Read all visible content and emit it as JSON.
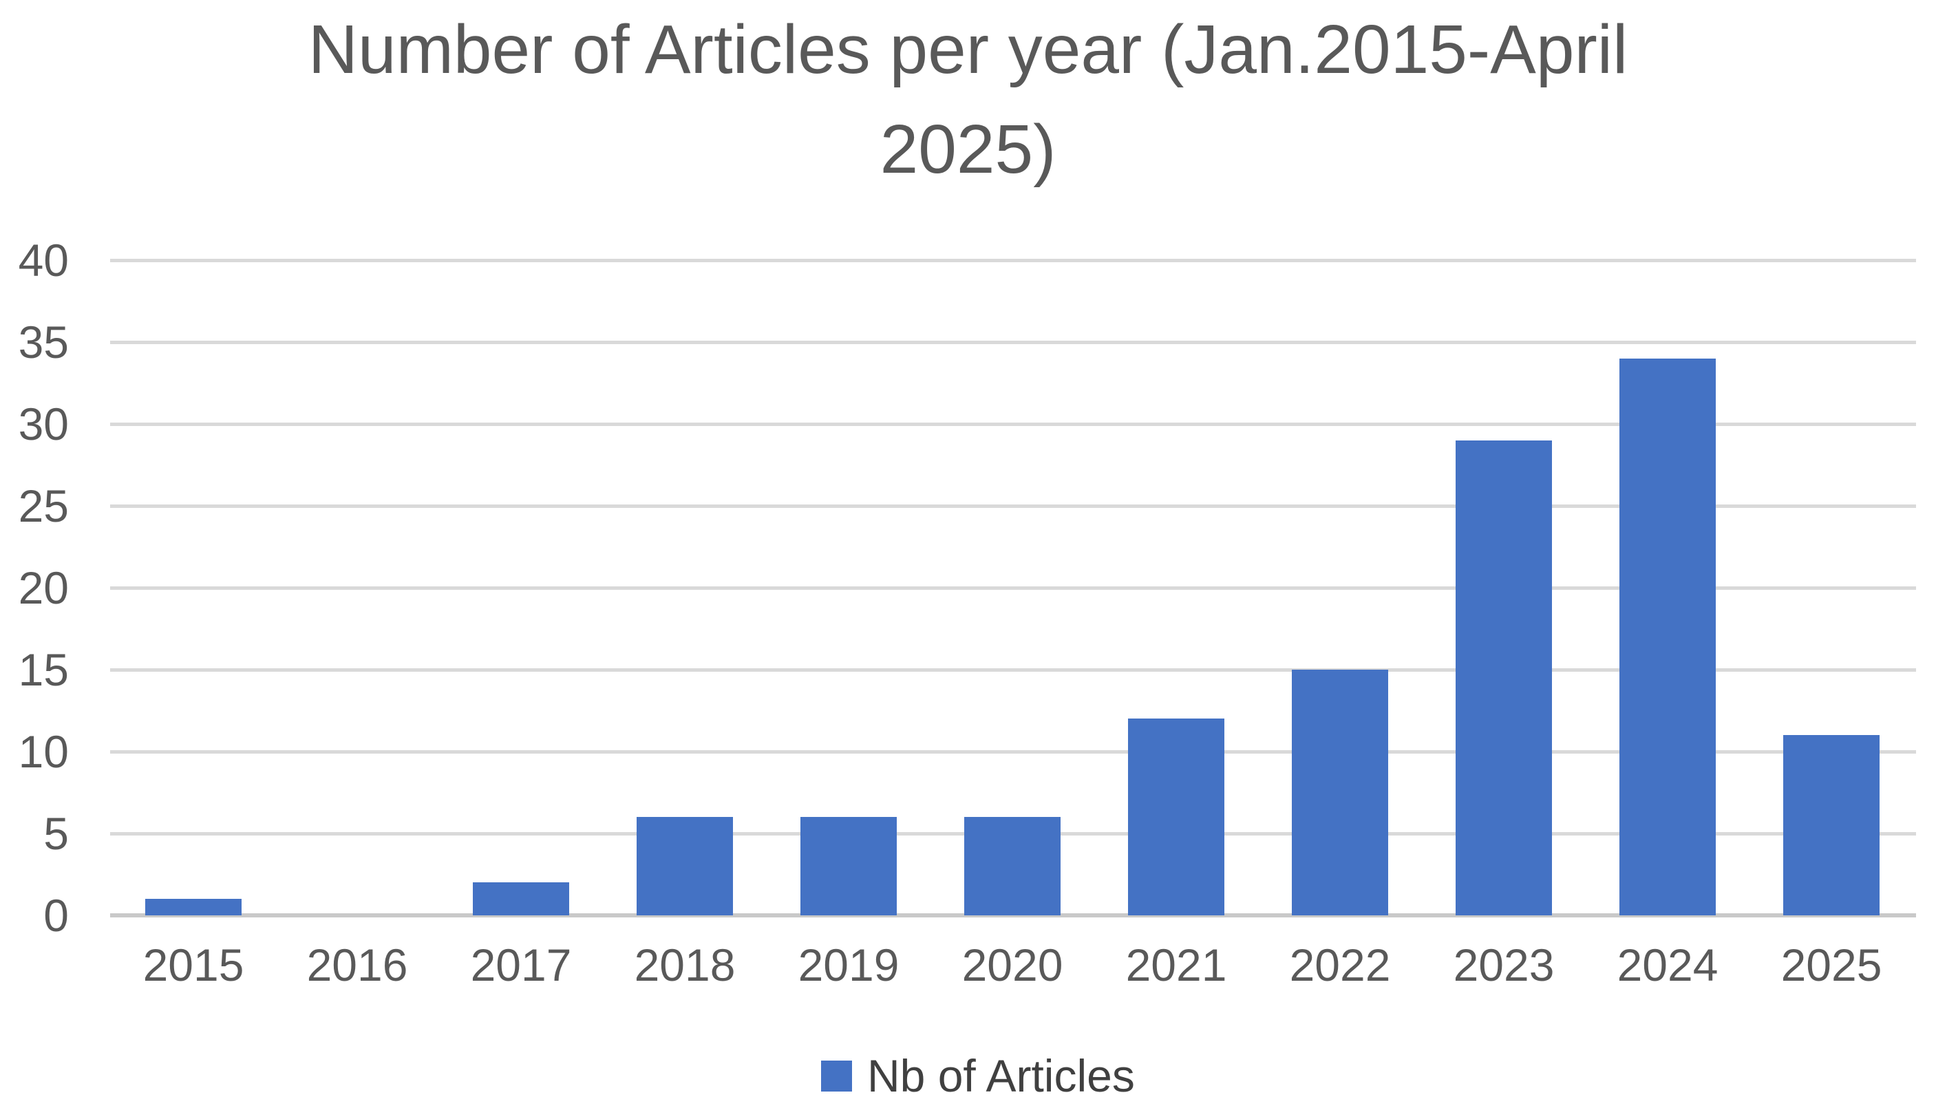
{
  "chart_data": {
    "type": "bar",
    "title": "Number of Articles per year (Jan.2015-April 2025)",
    "categories": [
      "2015",
      "2016",
      "2017",
      "2018",
      "2019",
      "2020",
      "2021",
      "2022",
      "2023",
      "2024",
      "2025"
    ],
    "series": [
      {
        "name": "Nb of Articles",
        "values": [
          1,
          0,
          2,
          6,
          6,
          6,
          12,
          15,
          29,
          34,
          11
        ]
      }
    ],
    "xlabel": "",
    "ylabel": "",
    "ylim": [
      0,
      40
    ],
    "yticks": [
      0,
      5,
      10,
      15,
      20,
      25,
      30,
      35,
      40
    ],
    "grid": true,
    "legend_position": "bottom",
    "colors": {
      "bar": "#4472C4",
      "gridline": "#D9D9D9",
      "axis_line": "#C9C9C9",
      "title_text": "#595959",
      "tick_text": "#595959",
      "legend_text": "#404040",
      "background": "#FFFFFF"
    }
  }
}
